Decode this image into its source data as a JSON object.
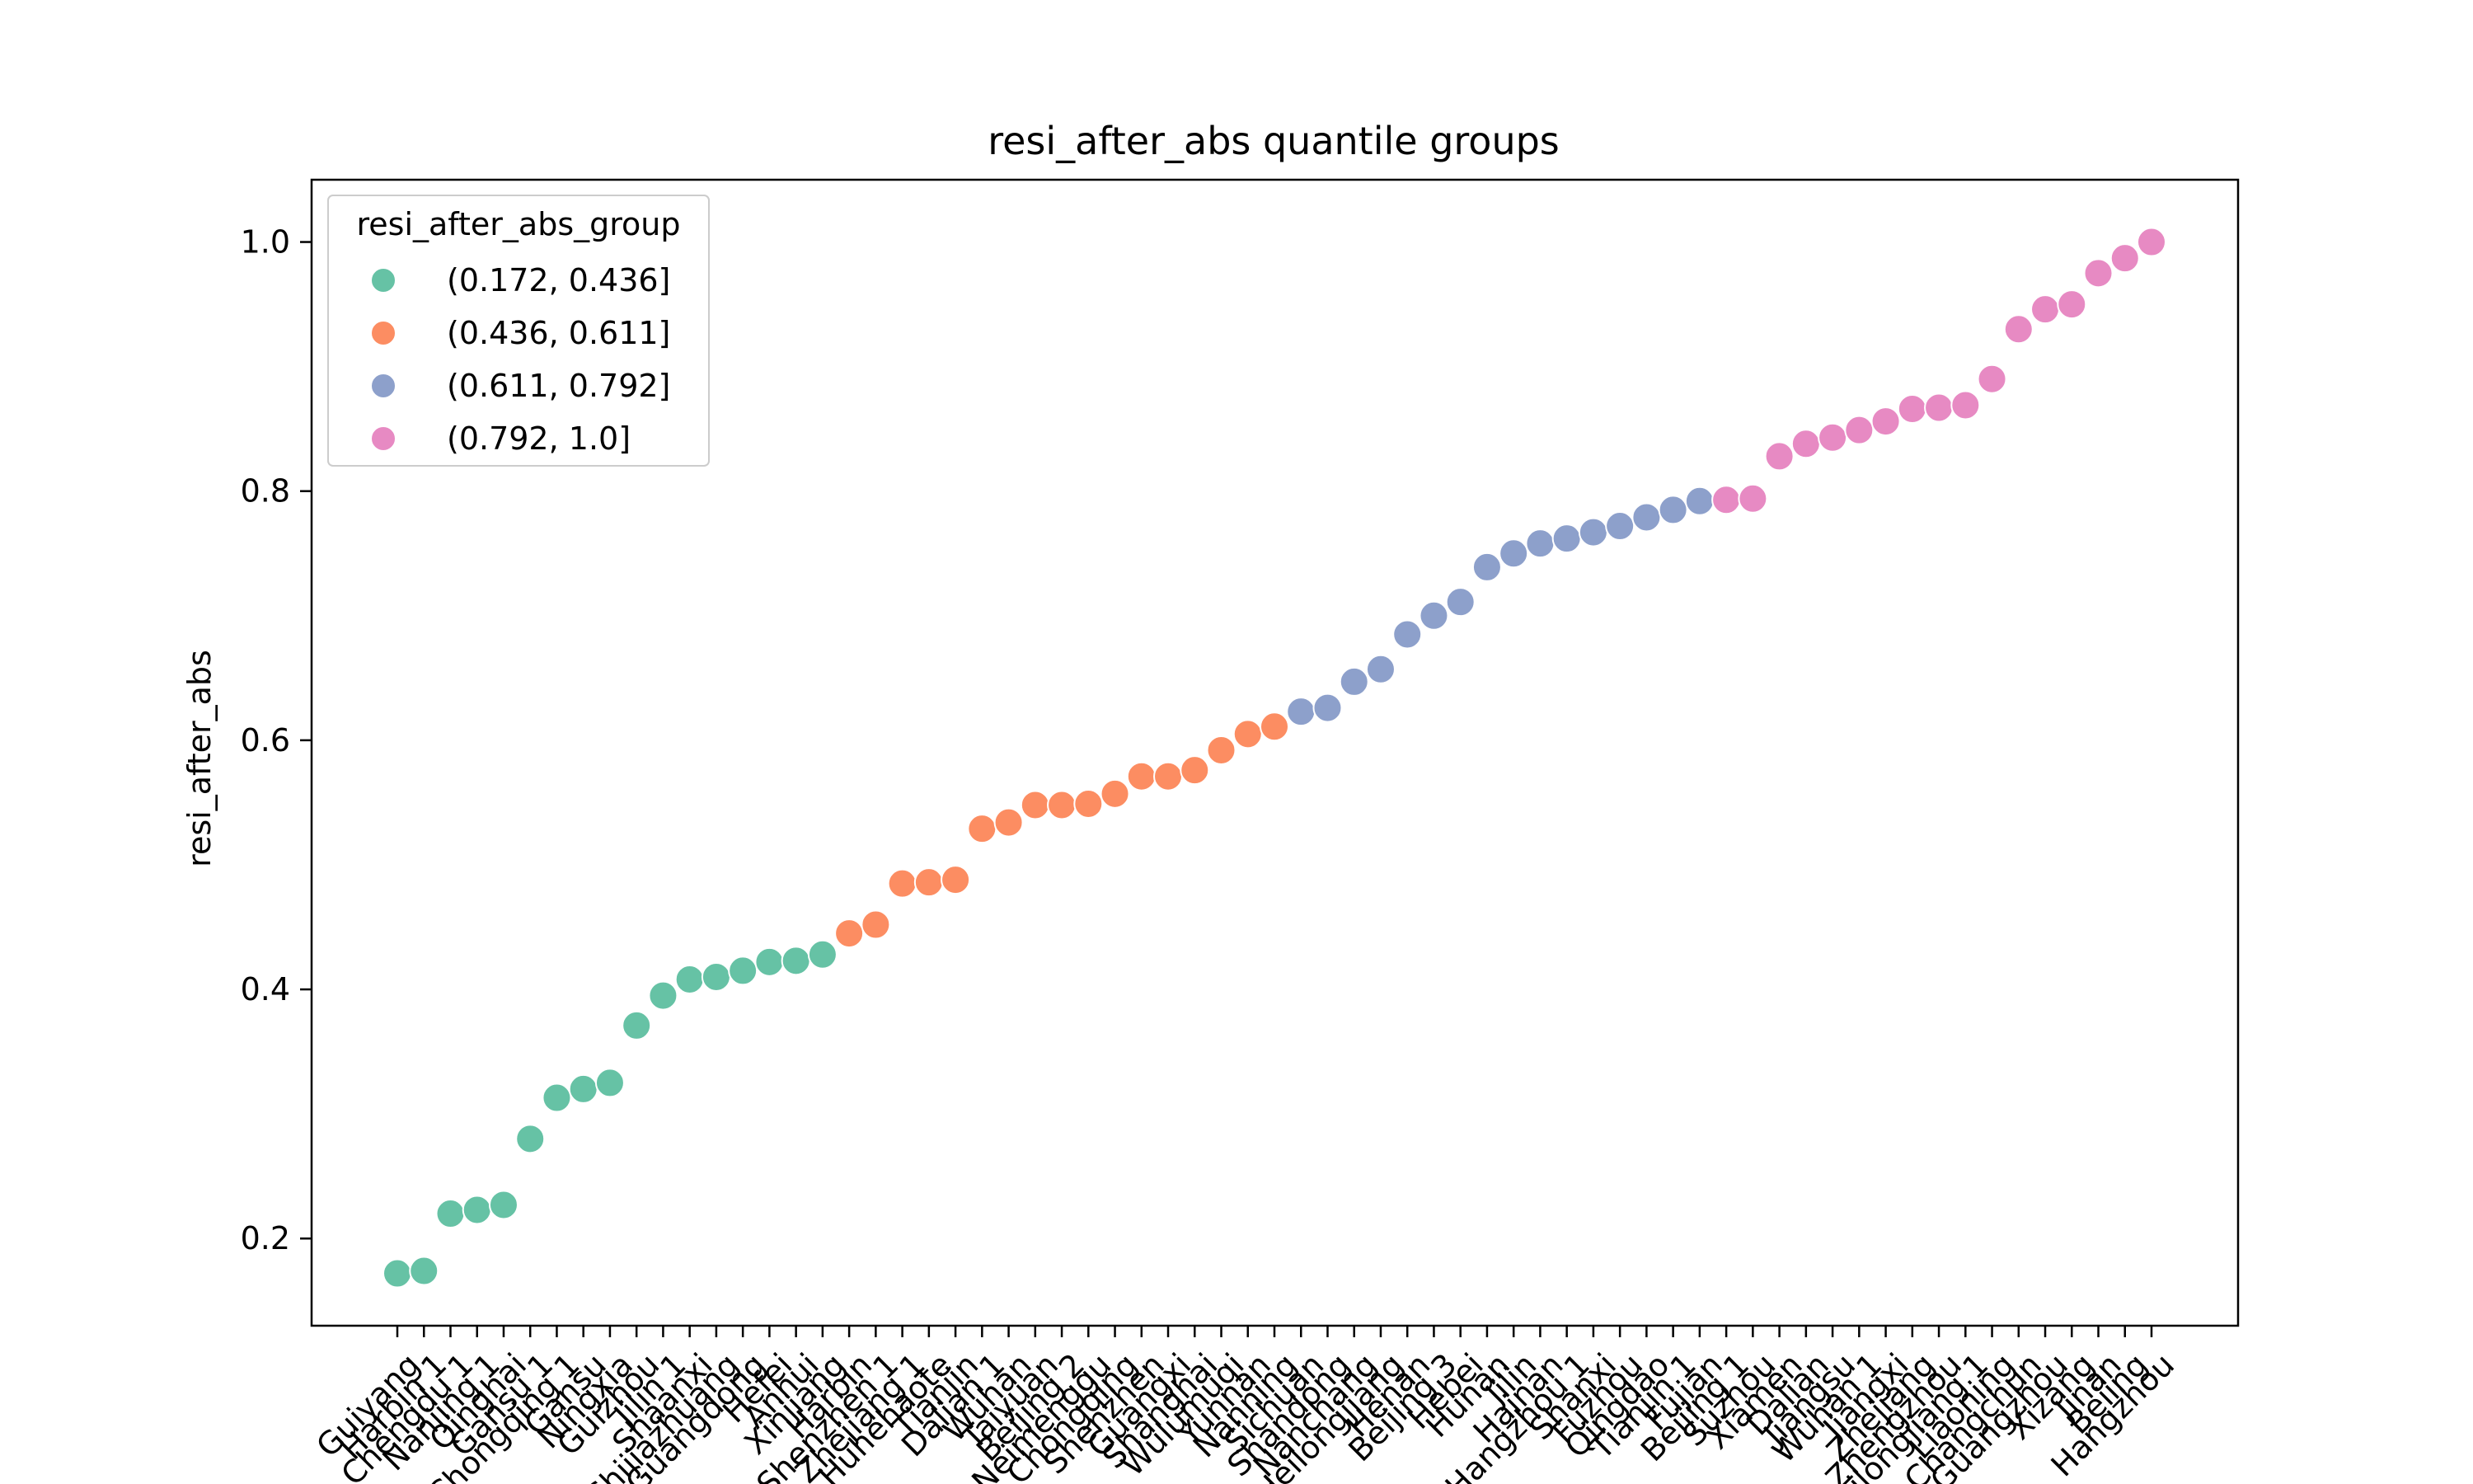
{
  "chart_data": {
    "type": "scatter",
    "title": "resi_after_abs quantile groups",
    "xlabel": "",
    "ylabel": "resi_after_abs",
    "ylim": [
      0.13,
      1.05
    ],
    "yticks": [
      0.2,
      0.4,
      0.6,
      0.8,
      1.0
    ],
    "ytick_labels": [
      "0.2",
      "0.4",
      "0.6",
      "0.8",
      "1.0"
    ],
    "grid": false,
    "legend": {
      "title": "resi_after_abs_group",
      "placement": "top-left",
      "entries": [
        {
          "label": "(0.172, 0.436]",
          "color": "#66c2a5"
        },
        {
          "label": "(0.436, 0.611]",
          "color": "#fc8d62"
        },
        {
          "label": "(0.611, 0.792]",
          "color": "#8da0cb"
        },
        {
          "label": "(0.792, 1.0]",
          "color": "#e78ac3"
        }
      ]
    },
    "points": [
      {
        "label": "Guiyang",
        "y": 0.172,
        "group": 0
      },
      {
        "label": "Harbin 1",
        "y": 0.174,
        "group": 0
      },
      {
        "label": "Chengdu 1",
        "y": 0.22,
        "group": 0
      },
      {
        "label": "Nanjing 1",
        "y": 0.223,
        "group": 0
      },
      {
        "label": "Qinghai",
        "y": 0.227,
        "group": 0
      },
      {
        "label": "Gansu 1",
        "y": 0.28,
        "group": 0
      },
      {
        "label": "Chongqing 1",
        "y": 0.313,
        "group": 0
      },
      {
        "label": "Gansu",
        "y": 0.32,
        "group": 0
      },
      {
        "label": "Ningxia",
        "y": 0.325,
        "group": 0
      },
      {
        "label": "Guizhou",
        "y": 0.371,
        "group": 0
      },
      {
        "label": "Jilin 1",
        "y": 0.395,
        "group": 0
      },
      {
        "label": "Shaanxi",
        "y": 0.408,
        "group": 0
      },
      {
        "label": "Shijiazhuang",
        "y": 0.41,
        "group": 0
      },
      {
        "label": "Guangdong",
        "y": 0.415,
        "group": 0
      },
      {
        "label": "Hefei",
        "y": 0.422,
        "group": 0
      },
      {
        "label": "Anhui",
        "y": 0.423,
        "group": 0
      },
      {
        "label": "Xinjiang",
        "y": 0.428,
        "group": 0
      },
      {
        "label": "Harbin",
        "y": 0.445,
        "group": 1
      },
      {
        "label": "Shenzhen 1",
        "y": 0.452,
        "group": 1
      },
      {
        "label": "Zhejiang 1",
        "y": 0.485,
        "group": 1
      },
      {
        "label": "Huhehaote",
        "y": 0.486,
        "group": 1
      },
      {
        "label": "Tianjin",
        "y": 0.488,
        "group": 1
      },
      {
        "label": "Dalian 1",
        "y": 0.529,
        "group": 1
      },
      {
        "label": "Wuhan",
        "y": 0.534,
        "group": 1
      },
      {
        "label": "Taiyuan",
        "y": 0.548,
        "group": 1
      },
      {
        "label": "Beijing 2",
        "y": 0.548,
        "group": 1
      },
      {
        "label": "Neimenggu",
        "y": 0.549,
        "group": 1
      },
      {
        "label": "Chongqing",
        "y": 0.557,
        "group": 1
      },
      {
        "label": "Shenzhen",
        "y": 0.571,
        "group": 1
      },
      {
        "label": "Guangxi",
        "y": 0.571,
        "group": 1
      },
      {
        "label": "Shanghai",
        "y": 0.576,
        "group": 1
      },
      {
        "label": "Wulumuqi",
        "y": 0.592,
        "group": 1
      },
      {
        "label": "Yunnan",
        "y": 0.605,
        "group": 1
      },
      {
        "label": "Nanning",
        "y": 0.611,
        "group": 1
      },
      {
        "label": "Sichuan",
        "y": 0.623,
        "group": 2
      },
      {
        "label": "Shandong",
        "y": 0.626,
        "group": 2
      },
      {
        "label": "Nanchang",
        "y": 0.647,
        "group": 2
      },
      {
        "label": "Heilongjiang",
        "y": 0.657,
        "group": 2
      },
      {
        "label": "Henan",
        "y": 0.685,
        "group": 2
      },
      {
        "label": "Beijing 3",
        "y": 0.7,
        "group": 2
      },
      {
        "label": "Hebei",
        "y": 0.711,
        "group": 2
      },
      {
        "label": "Hunan",
        "y": 0.739,
        "group": 2
      },
      {
        "label": "Jilin",
        "y": 0.75,
        "group": 2
      },
      {
        "label": "Hainan",
        "y": 0.758,
        "group": 2
      },
      {
        "label": "Hangzhou 1",
        "y": 0.762,
        "group": 2
      },
      {
        "label": "Shanxi",
        "y": 0.767,
        "group": 2
      },
      {
        "label": "Fuzhou",
        "y": 0.772,
        "group": 2
      },
      {
        "label": "Qingdao",
        "y": 0.779,
        "group": 2
      },
      {
        "label": "Tianjin 1",
        "y": 0.785,
        "group": 2
      },
      {
        "label": "Fujian",
        "y": 0.792,
        "group": 2
      },
      {
        "label": "Beijing 1",
        "y": 0.793,
        "group": 3
      },
      {
        "label": "Suzhou",
        "y": 0.794,
        "group": 3
      },
      {
        "label": "Xiamen",
        "y": 0.828,
        "group": 3
      },
      {
        "label": "Dalian",
        "y": 0.838,
        "group": 3
      },
      {
        "label": "Jiangsu",
        "y": 0.843,
        "group": 3
      },
      {
        "label": "Wuhan 1",
        "y": 0.849,
        "group": 3
      },
      {
        "label": "Jiangxi",
        "y": 0.856,
        "group": 3
      },
      {
        "label": "Zhejiang",
        "y": 0.866,
        "group": 3
      },
      {
        "label": "Zhengzhou",
        "y": 0.867,
        "group": 3
      },
      {
        "label": "Heilongjiang 1",
        "y": 0.869,
        "group": 3
      },
      {
        "label": "Liaoning",
        "y": 0.89,
        "group": 3
      },
      {
        "label": "Changchun",
        "y": 0.93,
        "group": 3
      },
      {
        "label": "Guangzhou",
        "y": 0.946,
        "group": 3
      },
      {
        "label": "Xizang",
        "y": 0.95,
        "group": 3
      },
      {
        "label": "Jinan",
        "y": 0.975,
        "group": 3
      },
      {
        "label": "Beiing",
        "y": 0.987,
        "group": 3
      },
      {
        "label": "Hangzhou",
        "y": 1.0,
        "group": 3
      }
    ]
  }
}
